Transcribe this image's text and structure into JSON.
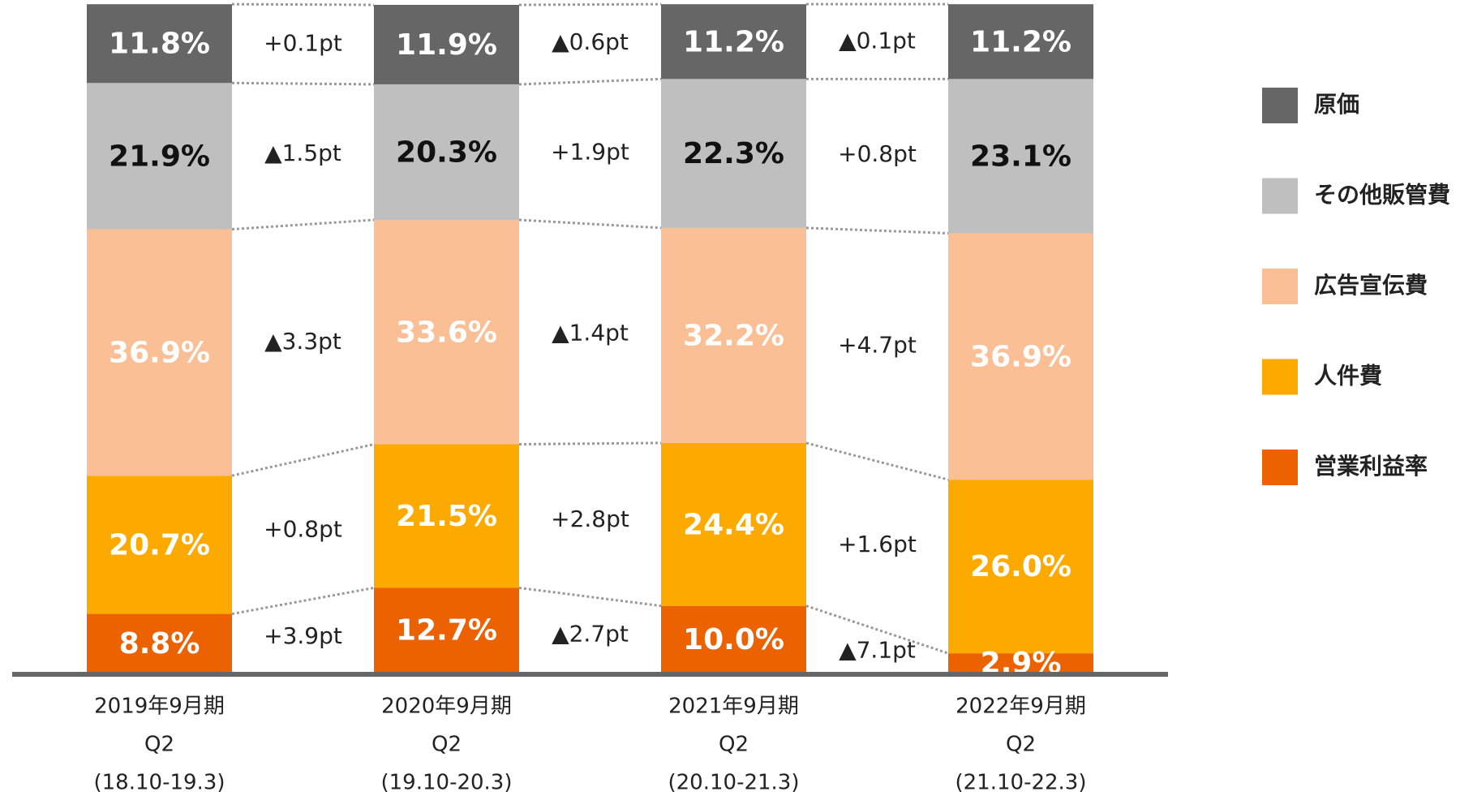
{
  "chart_data": {
    "type": "stacked_bar",
    "categories": [
      [
        "2019年9月期",
        "Q2",
        "(18.10-19.3)"
      ],
      [
        "2020年9月期",
        "Q2",
        "(19.10-20.3)"
      ],
      [
        "2021年9月期",
        "Q2",
        "(20.10-21.3)"
      ],
      [
        "2022年9月期",
        "Q2",
        "(21.10-22.3)"
      ]
    ],
    "ylim": [
      0,
      100
    ],
    "series": [
      {
        "name": "営業利益率",
        "color": "#ec6100",
        "label_color": "#ffffff",
        "values": [
          8.8,
          12.7,
          10.0,
          2.9
        ],
        "value_labels": [
          "8.8%",
          "12.7%",
          "10.0%",
          "2.9%"
        ],
        "changes": [
          "+3.9pt",
          "▲2.7pt",
          "▲7.1pt"
        ]
      },
      {
        "name": "人件費",
        "color": "#fcaa00",
        "label_color": "#ffffff",
        "values": [
          20.7,
          21.5,
          24.4,
          26.0
        ],
        "value_labels": [
          "20.7%",
          "21.5%",
          "24.4%",
          "26.0%"
        ],
        "changes": [
          "+0.8pt",
          "+2.8pt",
          "+1.6pt"
        ]
      },
      {
        "name": "広告宣伝費",
        "color": "#fbbf96",
        "label_color": "#ffffff",
        "values": [
          36.9,
          33.6,
          32.2,
          36.9
        ],
        "value_labels": [
          "36.9%",
          "33.6%",
          "32.2%",
          "36.9%"
        ],
        "changes": [
          "▲3.3pt",
          "▲1.4pt",
          "+4.7pt"
        ]
      },
      {
        "name": "その他販管費",
        "color": "#bfbfbf",
        "label_color": "#111111",
        "values": [
          21.9,
          20.3,
          22.3,
          23.1
        ],
        "value_labels": [
          "21.9%",
          "20.3%",
          "22.3%",
          "23.1%"
        ],
        "changes": [
          "▲1.5pt",
          "+1.9pt",
          "+0.8pt"
        ]
      },
      {
        "name": "原価",
        "color": "#666666",
        "label_color": "#ffffff",
        "values": [
          11.8,
          11.9,
          11.2,
          11.2
        ],
        "value_labels": [
          "11.8%",
          "11.9%",
          "11.2%",
          "11.2%"
        ],
        "changes": [
          "+0.1pt",
          "▲0.6pt",
          "▲0.1pt"
        ]
      }
    ]
  }
}
